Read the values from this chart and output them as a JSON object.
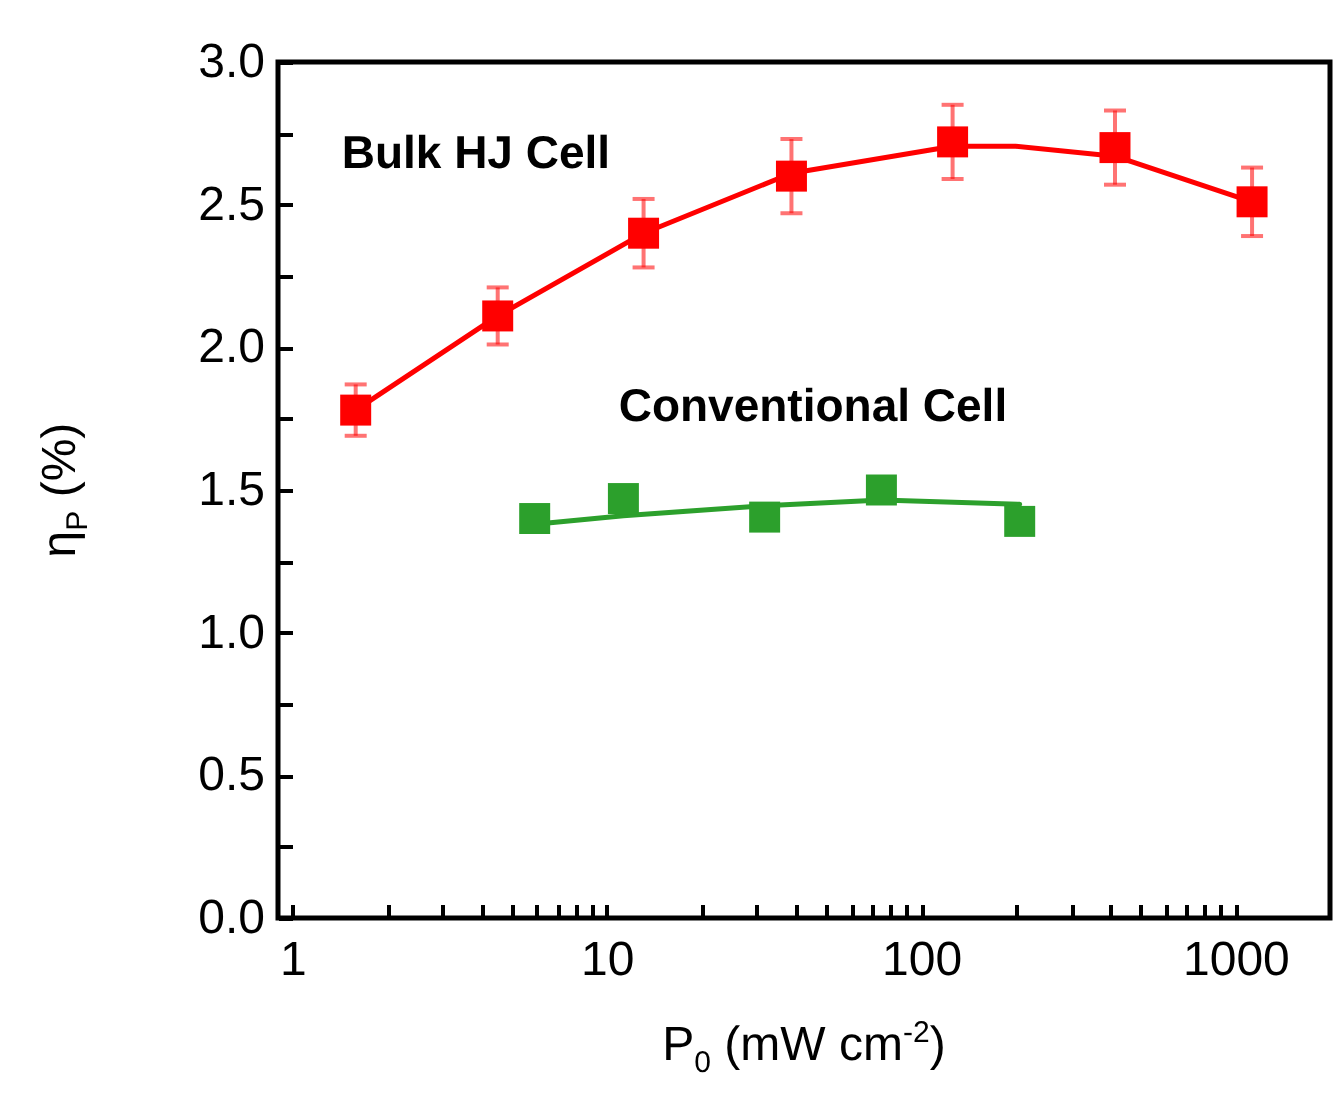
{
  "chart_data": {
    "type": "scatter",
    "xlabel": "P$_{0}$ (mW cm$^{-2}$)",
    "ylabel": "η$_{P}$ (%)",
    "log": "x",
    "grid": false,
    "marker": "square",
    "xlim": [
      0.9,
      2000
    ],
    "ylim": [
      0,
      3
    ],
    "xticks": [
      1,
      {
        "value": 2,
        "label": null
      },
      {
        "value": 3,
        "label": null
      },
      {
        "value": 4,
        "label": null
      },
      {
        "value": 5,
        "label": null
      },
      {
        "value": 6,
        "label": null
      },
      {
        "value": 7,
        "label": null
      },
      {
        "value": 8,
        "label": null
      },
      {
        "value": 9,
        "label": null
      },
      10,
      {
        "value": 20,
        "label": null
      },
      {
        "value": 30,
        "label": null
      },
      {
        "value": 40,
        "label": null
      },
      {
        "value": 50,
        "label": null
      },
      {
        "value": 60,
        "label": null
      },
      {
        "value": 70,
        "label": null
      },
      {
        "value": 80,
        "label": null
      },
      {
        "value": 90,
        "label": null
      },
      100,
      {
        "value": 200,
        "label": null
      },
      {
        "value": 300,
        "label": null
      },
      {
        "value": 400,
        "label": null
      },
      {
        "value": 500,
        "label": null
      },
      {
        "value": 600,
        "label": null
      },
      {
        "value": 700,
        "label": null
      },
      {
        "value": 800,
        "label": null
      },
      {
        "value": 900,
        "label": null
      },
      1000
    ],
    "yticks": [
      {
        "value": 0,
        "label": "0.0"
      },
      {
        "value": 0.25,
        "label": null
      },
      {
        "value": 0.5,
        "label": "0.5"
      },
      {
        "value": 0.75,
        "label": null
      },
      {
        "value": 1,
        "label": "1.0"
      },
      {
        "value": 1.25,
        "label": null
      },
      {
        "value": 1.5,
        "label": "1.5"
      },
      {
        "value": 1.75,
        "label": null
      },
      {
        "value": 2,
        "label": "2.0"
      },
      {
        "value": 2.25,
        "label": null
      },
      {
        "value": 2.5,
        "label": "2.5"
      },
      {
        "value": 2.75,
        "label": null
      },
      {
        "value": 3,
        "label": "3.0"
      }
    ],
    "series": [
      {
        "type": "scatter",
        "name": "Bulk HJ Cell",
        "color": "#ff0000",
        "x": [
          1.59,
          4.5,
          13.1,
          38.7,
          126,
          414,
          1130
        ],
        "values": [
          1.78,
          2.11,
          2.4,
          2.6,
          2.72,
          2.7,
          2.51
        ],
        "errors": [
          0.09,
          0.1,
          0.12,
          0.13,
          0.13,
          0.13,
          0.12
        ]
      },
      {
        "type": "scatter",
        "name": "Conventional Cell",
        "color": "#2ca02c",
        "x": [
          5.9,
          11.3,
          31.8,
          74.8,
          206
        ],
        "values": [
          1.4,
          1.47,
          1.405,
          1.5,
          1.39
        ]
      },
      {
        "type": "line",
        "color": "#ff0000",
        "marker": "none",
        "x": [
          1.59,
          4.5,
          13.1,
          38.7,
          126,
          200,
          414,
          1130
        ],
        "values": [
          1.78,
          2.11,
          2.4,
          2.61,
          2.705,
          2.705,
          2.67,
          2.51
        ]
      },
      {
        "type": "line",
        "color": "#2ca02c",
        "marker": "none",
        "x": [
          5.9,
          11.3,
          31.8,
          74.8,
          206
        ],
        "values": [
          1.38,
          1.41,
          1.445,
          1.465,
          1.45
        ]
      }
    ]
  }
}
